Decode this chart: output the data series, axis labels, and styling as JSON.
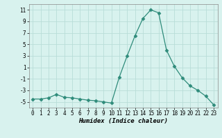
{
  "x": [
    0,
    1,
    2,
    3,
    4,
    5,
    6,
    7,
    8,
    9,
    10,
    11,
    12,
    13,
    14,
    15,
    16,
    17,
    18,
    19,
    20,
    21,
    22,
    23
  ],
  "y": [
    -4.5,
    -4.5,
    -4.3,
    -3.7,
    -4.2,
    -4.3,
    -4.5,
    -4.7,
    -4.8,
    -5.0,
    -5.2,
    -0.7,
    3.0,
    6.5,
    9.5,
    11.0,
    10.5,
    4.0,
    1.2,
    -0.8,
    -2.2,
    -3.0,
    -4.0,
    -5.5
  ],
  "line_color": "#2E8B7A",
  "marker": "D",
  "marker_size": 2.5,
  "bg_color": "#D8F2EE",
  "grid_color": "#B8DDD8",
  "xlabel": "Humidex (Indice chaleur)",
  "ylim": [
    -6,
    12
  ],
  "yticks": [
    -5,
    -3,
    -1,
    1,
    3,
    5,
    7,
    9,
    11
  ],
  "xlim": [
    -0.5,
    23.5
  ],
  "xticks": [
    0,
    1,
    2,
    3,
    4,
    5,
    6,
    7,
    8,
    9,
    10,
    11,
    12,
    13,
    14,
    15,
    16,
    17,
    18,
    19,
    20,
    21,
    22,
    23
  ],
  "xlabel_fontsize": 6.5,
  "tick_fontsize": 5.5
}
